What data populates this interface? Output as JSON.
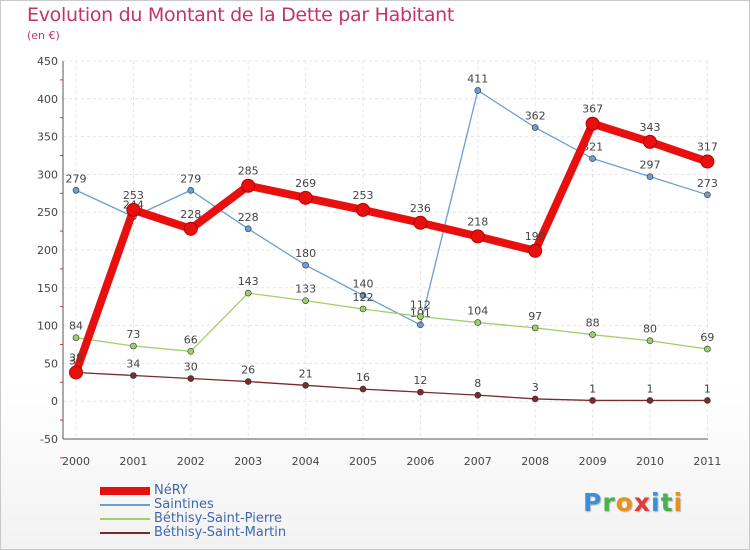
{
  "title": "Evolution du Montant de la Dette par Habitant",
  "subtitle": "(en €)",
  "brand": {
    "text": "Proxiti",
    "letter_colors": [
      "#3b8fd8",
      "#4caf50",
      "#e8901c",
      "#e03a3a",
      "#3b8fd8",
      "#4caf50",
      "#e8901c"
    ]
  },
  "chart_data": {
    "type": "line",
    "title": "Evolution du Montant de la Dette par Habitant",
    "subtitle": "(en €)",
    "xlabel": "",
    "ylabel": "",
    "x": [
      "2000",
      "2001",
      "2002",
      "2003",
      "2004",
      "2005",
      "2006",
      "2007",
      "2008",
      "2009",
      "2010",
      "2011"
    ],
    "ylim": [
      -50,
      450
    ],
    "yticks": [
      -50,
      0,
      50,
      100,
      150,
      200,
      250,
      300,
      350,
      400,
      450
    ],
    "grid": true,
    "legend_position": "bottom-left",
    "series": [
      {
        "name": "NéRY",
        "color": "#e8100f",
        "emphasis": true,
        "values": [
          38,
          253,
          228,
          285,
          269,
          253,
          236,
          218,
          199,
          367,
          343,
          317
        ]
      },
      {
        "name": "Saintines",
        "color": "#6b9fd4",
        "emphasis": false,
        "values": [
          279,
          244,
          279,
          228,
          180,
          140,
          101,
          411,
          362,
          321,
          297,
          273
        ]
      },
      {
        "name": "Béthisy-Saint-Pierre",
        "color": "#9ed06a",
        "emphasis": false,
        "values": [
          84,
          73,
          66,
          143,
          133,
          122,
          112,
          104,
          97,
          88,
          80,
          69
        ]
      },
      {
        "name": "Béthisy-Saint-Martin",
        "color": "#7a2b2b",
        "emphasis": false,
        "values": [
          38,
          34,
          30,
          26,
          21,
          16,
          12,
          8,
          3,
          1,
          1,
          1
        ]
      }
    ]
  }
}
